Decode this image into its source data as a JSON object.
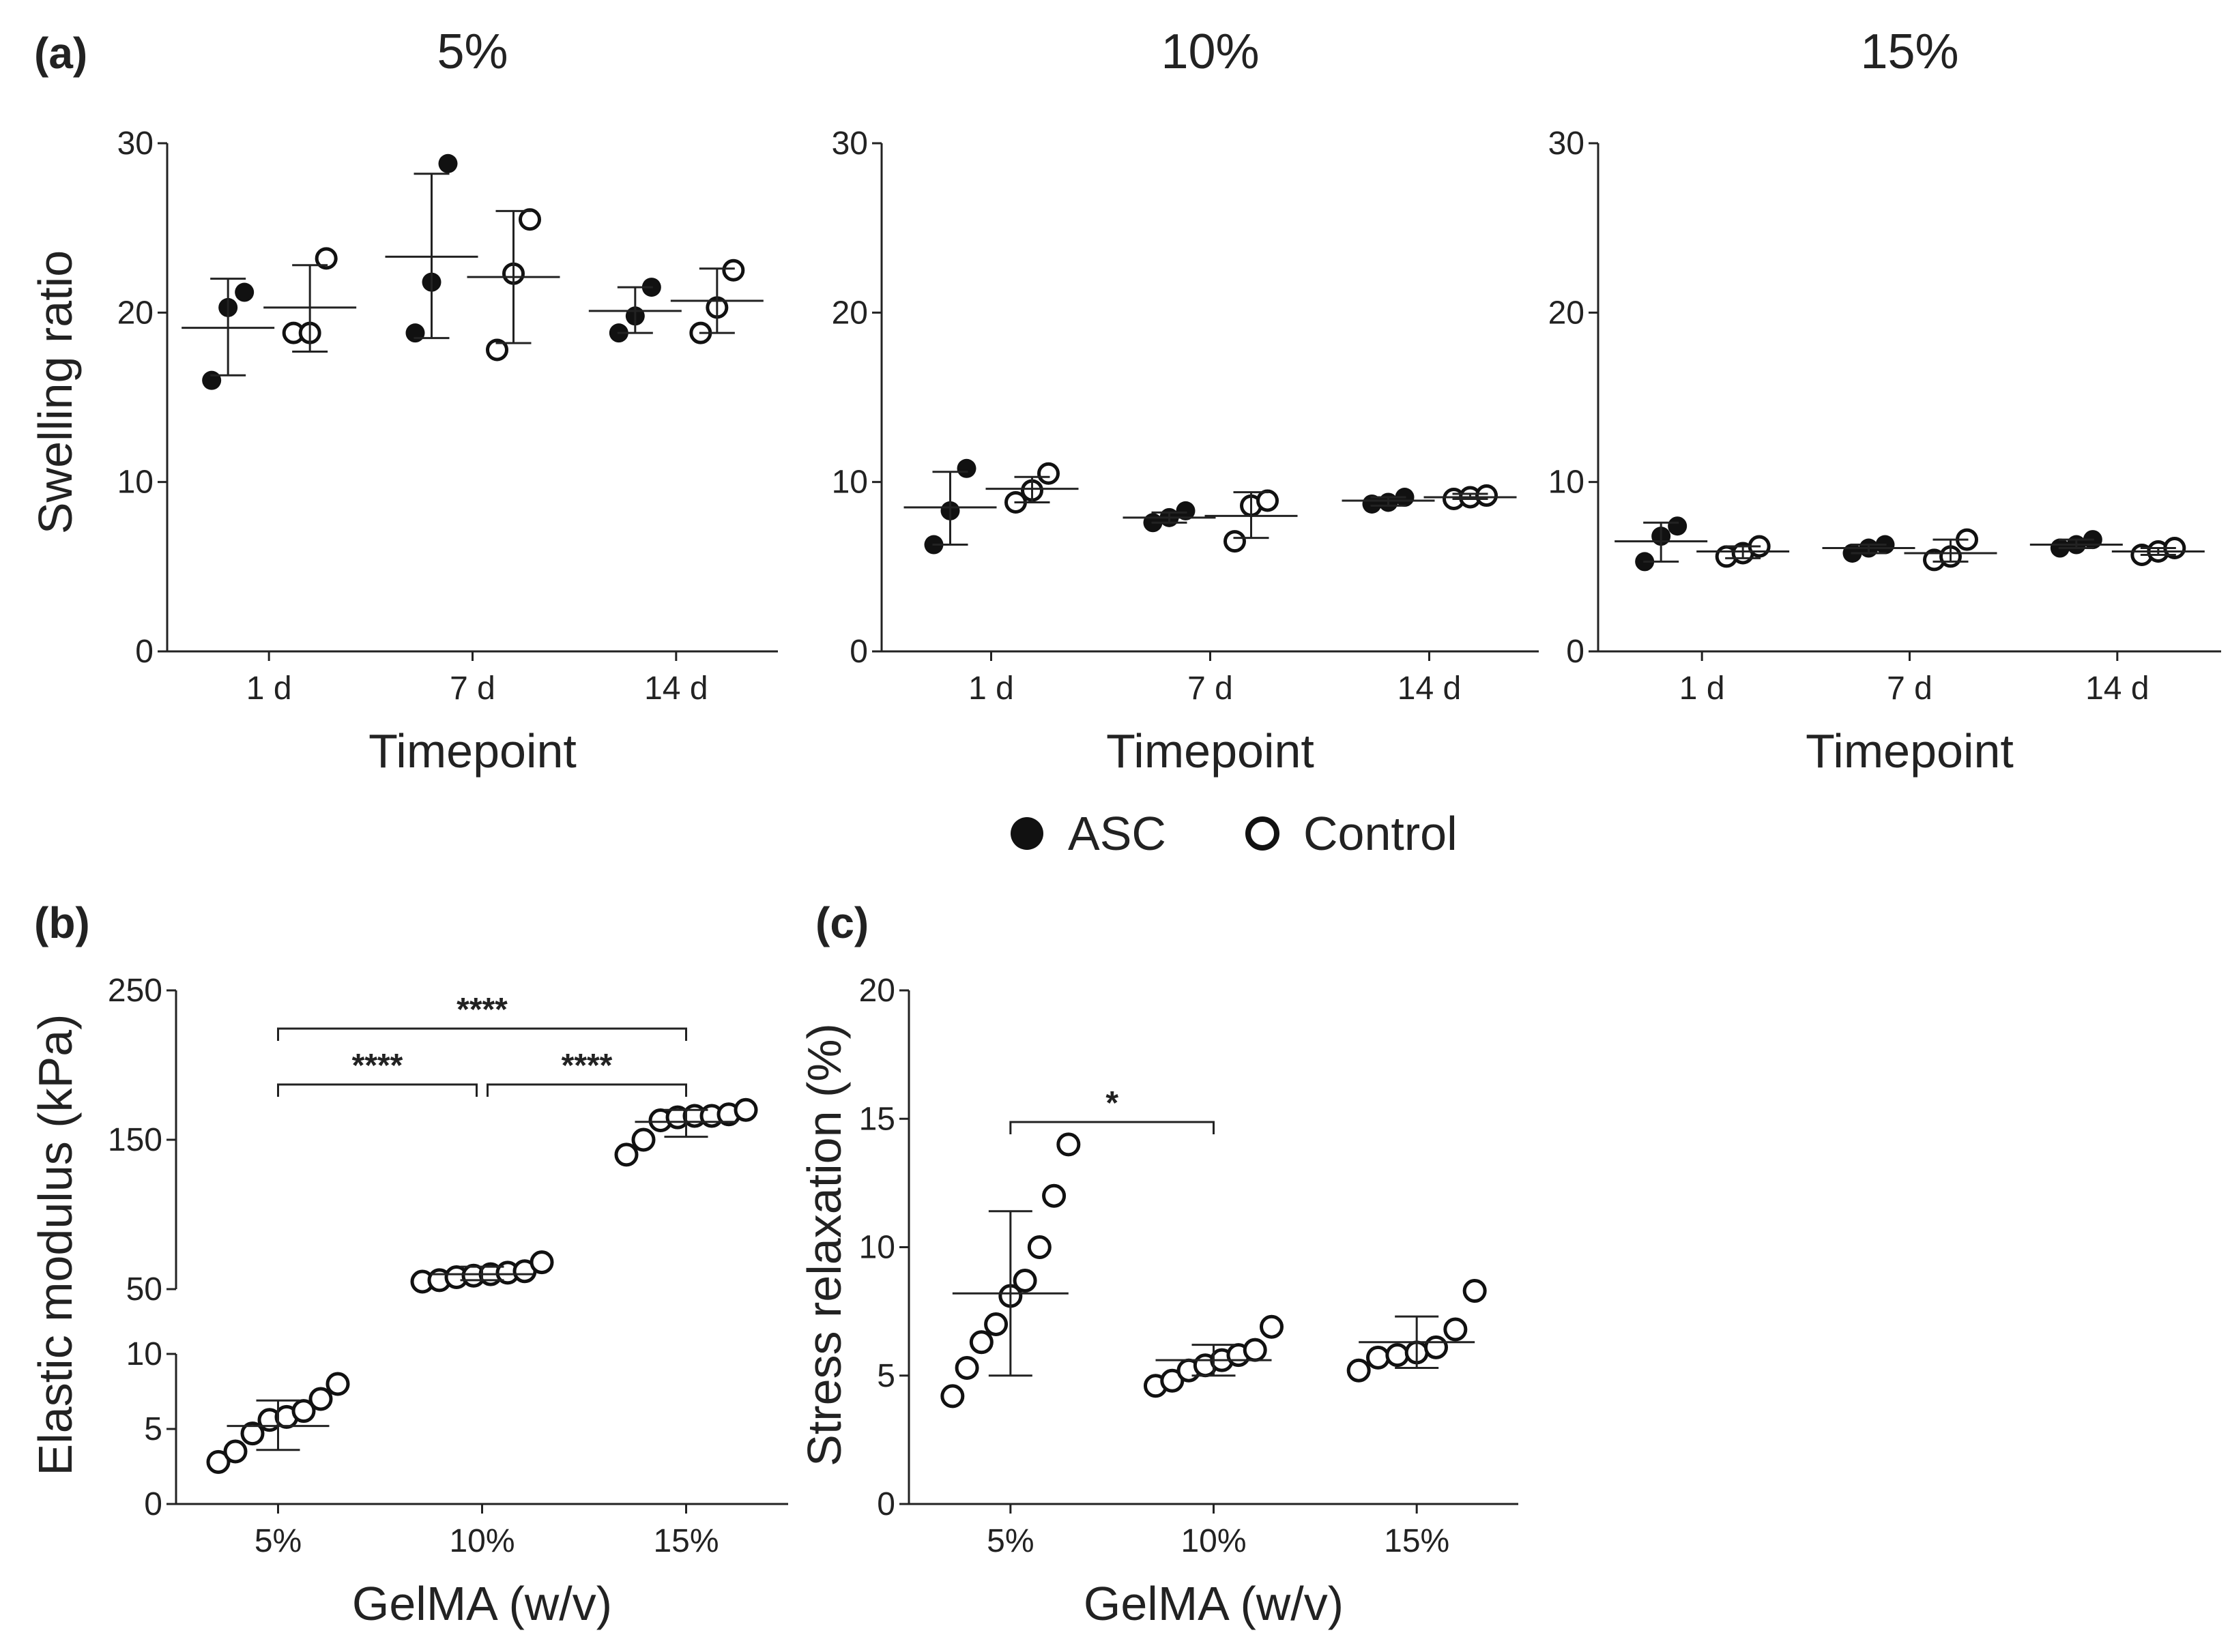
{
  "figure": {
    "panel_labels": [
      "(a)",
      "(b)",
      "(c)"
    ],
    "legend": [
      {
        "label": "ASC",
        "marker": "filled-circle",
        "color": "#111111"
      },
      {
        "label": "Control",
        "marker": "open-circle",
        "color": "#111111"
      }
    ]
  },
  "chart_data": [
    {
      "id": "swelling-5",
      "panel": "(a)",
      "type": "scatter",
      "title": "5%",
      "xlabel": "Timepoint",
      "ylabel": "Swelling ratio",
      "categories": [
        "1 d",
        "7 d",
        "14 d"
      ],
      "ylim": [
        0,
        30
      ],
      "yticks": [
        0,
        10,
        20,
        30
      ],
      "series": [
        {
          "name": "ASC",
          "filled": true,
          "points": [
            [
              16.0,
              20.3,
              21.2
            ],
            [
              18.8,
              21.8,
              28.8
            ],
            [
              18.8,
              19.8,
              21.5
            ]
          ],
          "mean": [
            19.1,
            23.3,
            20.1
          ],
          "sd_low": [
            16.3,
            18.5,
            18.8
          ],
          "sd_high": [
            22.0,
            28.2,
            21.5
          ]
        },
        {
          "name": "Control",
          "filled": false,
          "points": [
            [
              18.8,
              18.8,
              23.2
            ],
            [
              17.8,
              22.3,
              25.5
            ],
            [
              18.8,
              20.3,
              22.5
            ]
          ],
          "mean": [
            20.3,
            22.1,
            20.7
          ],
          "sd_low": [
            17.7,
            18.2,
            18.8
          ],
          "sd_high": [
            22.8,
            26.0,
            22.6
          ]
        }
      ]
    },
    {
      "id": "swelling-10",
      "panel": "(a)",
      "type": "scatter",
      "title": "10%",
      "xlabel": "Timepoint",
      "ylabel": "",
      "categories": [
        "1 d",
        "7 d",
        "14 d"
      ],
      "ylim": [
        0,
        30
      ],
      "yticks": [
        0,
        10,
        20,
        30
      ],
      "series": [
        {
          "name": "ASC",
          "filled": true,
          "points": [
            [
              6.3,
              8.3,
              10.8
            ],
            [
              7.6,
              7.9,
              8.3
            ],
            [
              8.7,
              8.8,
              9.1
            ]
          ],
          "mean": [
            8.5,
            7.9,
            8.9
          ],
          "sd_low": [
            6.3,
            7.6,
            8.6
          ],
          "sd_high": [
            10.6,
            8.2,
            9.1
          ]
        },
        {
          "name": "Control",
          "filled": false,
          "points": [
            [
              8.8,
              9.5,
              10.5
            ],
            [
              6.5,
              8.6,
              8.9
            ],
            [
              9.0,
              9.1,
              9.2
            ]
          ],
          "mean": [
            9.6,
            8.0,
            9.1
          ],
          "sd_low": [
            8.8,
            6.7,
            9.0
          ],
          "sd_high": [
            10.3,
            9.4,
            9.3
          ]
        }
      ]
    },
    {
      "id": "swelling-15",
      "panel": "(a)",
      "type": "scatter",
      "title": "15%",
      "xlabel": "Timepoint",
      "ylabel": "",
      "categories": [
        "1 d",
        "7 d",
        "14 d"
      ],
      "ylim": [
        0,
        30
      ],
      "yticks": [
        0,
        10,
        20,
        30
      ],
      "series": [
        {
          "name": "ASC",
          "filled": true,
          "points": [
            [
              5.3,
              6.8,
              7.4
            ],
            [
              5.8,
              6.1,
              6.3
            ],
            [
              6.1,
              6.3,
              6.6
            ]
          ],
          "mean": [
            6.5,
            6.1,
            6.3
          ],
          "sd_low": [
            5.3,
            5.8,
            6.1
          ],
          "sd_high": [
            7.6,
            6.3,
            6.6
          ]
        },
        {
          "name": "Control",
          "filled": false,
          "points": [
            [
              5.6,
              5.8,
              6.2
            ],
            [
              5.4,
              5.6,
              6.6
            ],
            [
              5.7,
              5.9,
              6.1
            ]
          ],
          "mean": [
            5.9,
            5.8,
            5.9
          ],
          "sd_low": [
            5.5,
            5.3,
            5.7
          ],
          "sd_high": [
            6.2,
            6.6,
            6.1
          ]
        }
      ]
    },
    {
      "id": "elastic-modulus",
      "panel": "(b)",
      "type": "scatter",
      "title": "",
      "xlabel": "GelMA (w/v)",
      "ylabel": "Elastic modulus (kPa)",
      "categories": [
        "5%",
        "10%",
        "15%"
      ],
      "axis_break": {
        "lower_range": [
          0,
          10
        ],
        "upper_range": [
          50,
          250
        ],
        "lower_ticks": [
          0,
          5,
          10
        ],
        "upper_ticks": [
          50,
          150,
          250
        ],
        "upper_tick_labels": [
          "50",
          "150",
          "250"
        ]
      },
      "series": [
        {
          "name": "Control",
          "filled": false,
          "points": [
            [
              2.8,
              3.5,
              4.7,
              5.6,
              5.8,
              6.2,
              7.0,
              8.0
            ],
            [
              55.0,
              56.0,
              58.0,
              59.0,
              60.0,
              61.0,
              62.0,
              68.0
            ],
            [
              140.0,
              150.0,
              163.0,
              165.0,
              166.0,
              166.0,
              167.0,
              170.0
            ]
          ],
          "mean": [
            5.2,
            60.0,
            162.0
          ],
          "sd_low": [
            3.6,
            56.0,
            152.0
          ],
          "sd_high": [
            6.9,
            65.0,
            170.0
          ]
        }
      ],
      "significance": [
        {
          "from": "5%",
          "to": "10%",
          "label": "****"
        },
        {
          "from": "10%",
          "to": "15%",
          "label": "****"
        },
        {
          "from": "5%",
          "to": "15%",
          "label": "****"
        }
      ]
    },
    {
      "id": "stress-relaxation",
      "panel": "(c)",
      "type": "scatter",
      "title": "",
      "xlabel": "GelMA (w/v)",
      "ylabel": "Stress relaxation (%)",
      "categories": [
        "5%",
        "10%",
        "15%"
      ],
      "ylim": [
        0,
        20
      ],
      "yticks": [
        0,
        5,
        10,
        15,
        20
      ],
      "series": [
        {
          "name": "Control",
          "filled": false,
          "points": [
            [
              4.2,
              5.3,
              6.3,
              7.0,
              8.1,
              8.7,
              10.0,
              12.0,
              14.0
            ],
            [
              4.6,
              4.8,
              5.2,
              5.4,
              5.6,
              5.8,
              6.0,
              6.9
            ],
            [
              5.2,
              5.7,
              5.8,
              5.9,
              6.1,
              6.8,
              8.3
            ]
          ],
          "mean": [
            8.2,
            5.6,
            6.3
          ],
          "sd_low": [
            5.0,
            5.0,
            5.3
          ],
          "sd_high": [
            11.4,
            6.2,
            7.3
          ]
        }
      ],
      "significance": [
        {
          "from": "5%",
          "to": "10%",
          "label": "*"
        }
      ]
    }
  ]
}
